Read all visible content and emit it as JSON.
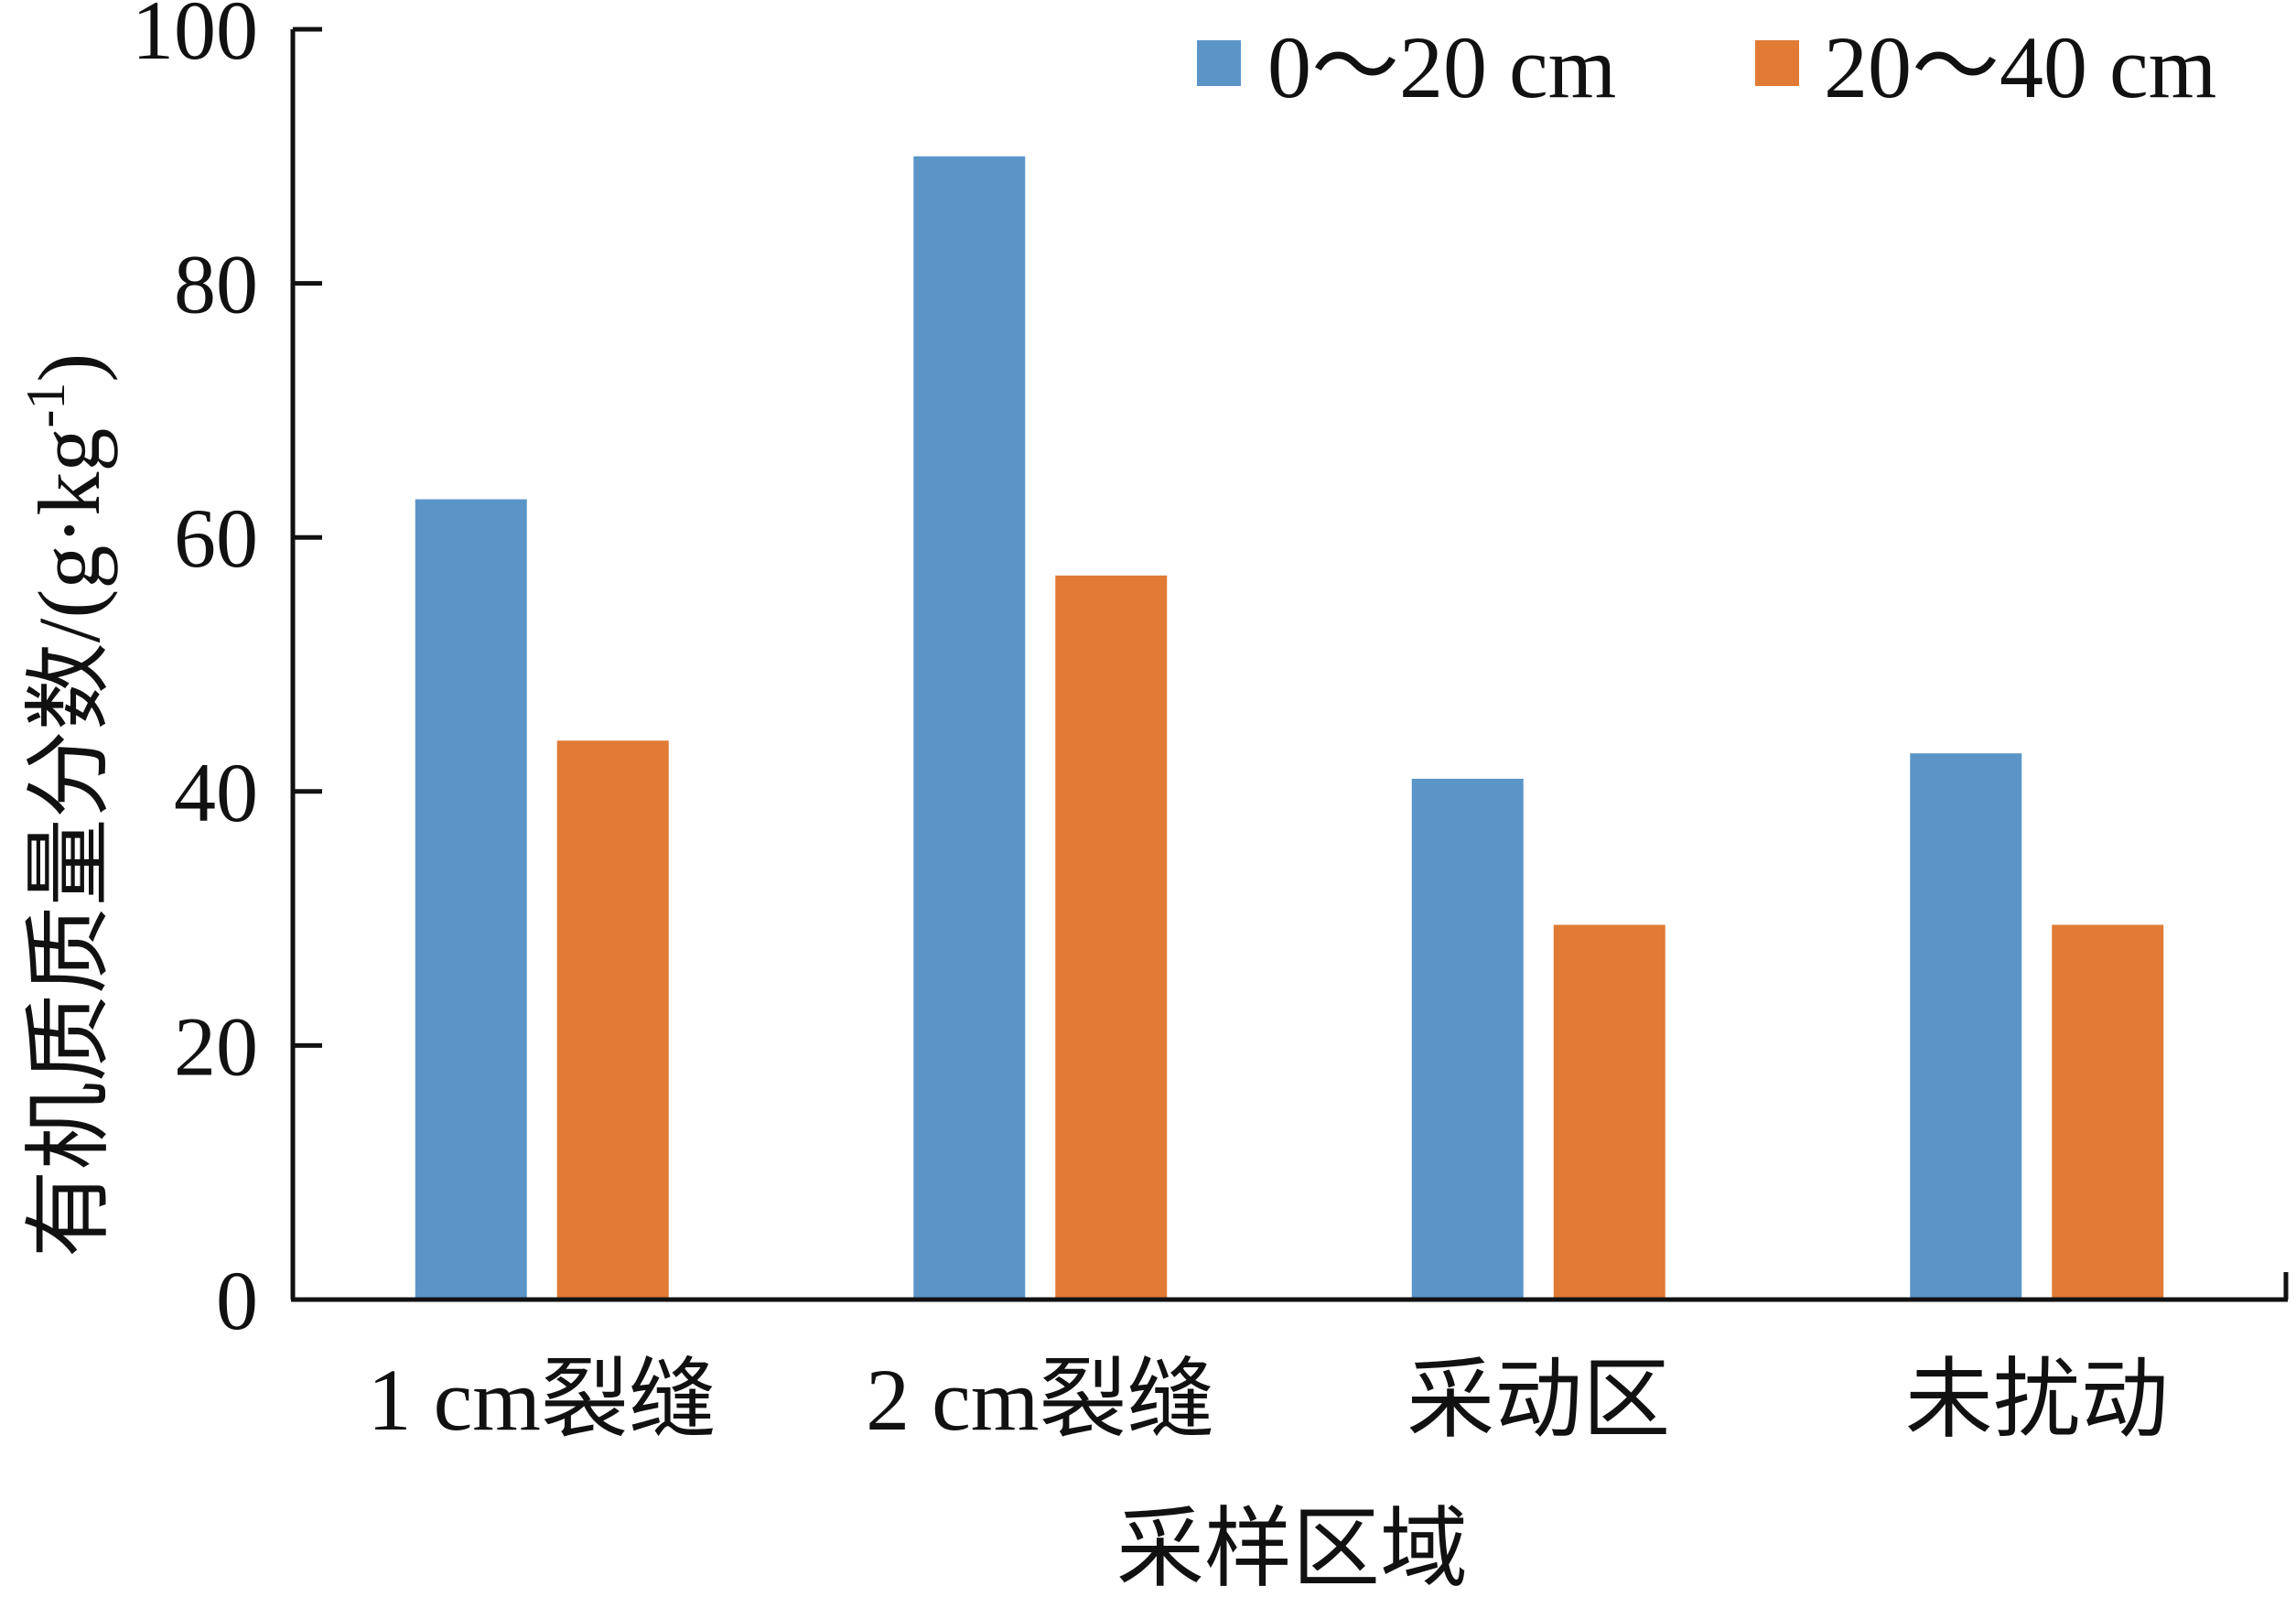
{
  "chart_data": {
    "type": "bar",
    "categories": [
      "1 cm裂缝",
      "2 cm裂缝",
      "采动区",
      "未扰动"
    ],
    "series": [
      {
        "name": "0～20 cm",
        "values": [
          63,
          90,
          41,
          43
        ],
        "color": "#5b95c8"
      },
      {
        "name": "20～40 cm",
        "values": [
          44,
          57,
          29.5,
          29.5
        ],
        "color": "#e07a35"
      }
    ],
    "title": "",
    "xlabel": "采样区域",
    "ylabel": "有机质质量分数/(g·kg",
    "ylabel_sup": "-1",
    "ylabel_close": ")",
    "ylim": [
      0,
      100
    ],
    "yticks": [
      0,
      20,
      40,
      60,
      80,
      100
    ],
    "grid": false,
    "legend_position": "top-right"
  }
}
